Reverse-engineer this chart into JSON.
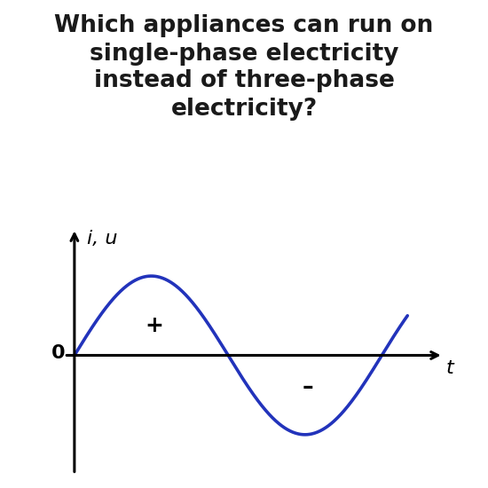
{
  "title_line1": "Which appliances can run on",
  "title_line2": "single-phase electricity",
  "title_line3": "instead of three-phase",
  "title_line4": "electricity?",
  "title_fontsize": 19,
  "title_fontweight": "bold",
  "title_color": "#1a1a1a",
  "background_color": "#ffffff",
  "sine_color": "#2233bb",
  "sine_linewidth": 2.6,
  "axis_color": "#000000",
  "y_axis_label": "i, u",
  "x_axis_label": "t",
  "plus_label": "+",
  "minus_label": "–",
  "zero_label": "0",
  "label_fontsize": 16,
  "zero_fontsize": 16,
  "sign_fontsize": 18,
  "iu_fontsize": 16
}
